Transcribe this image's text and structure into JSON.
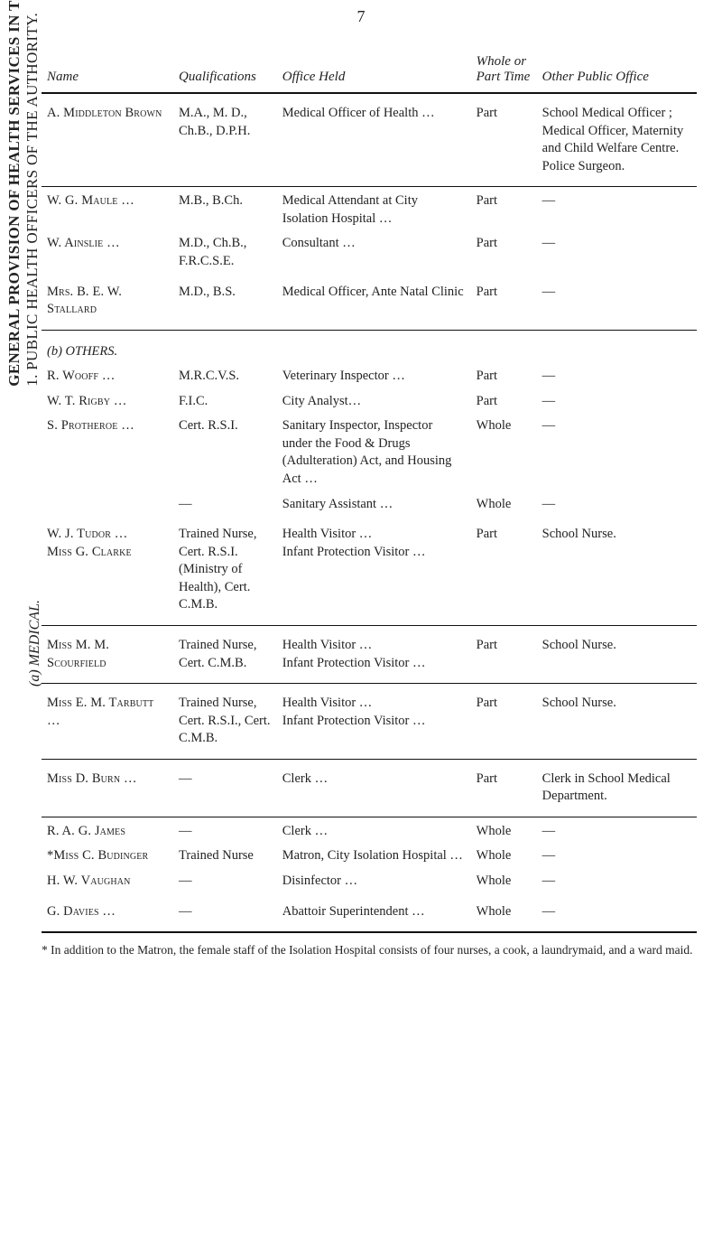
{
  "page_number": "7",
  "running_head": {
    "bold": "GENERAL PROVISION OF HEALTH SERVICES IN THE AREA.",
    "line2": "1.  PUBLIC HEALTH OFFICERS OF THE AUTHORITY."
  },
  "side_label": "(a) MEDICAL.",
  "columns": {
    "name": "Name",
    "qual": "Qualifications",
    "office": "Office Held",
    "time": "Whole or Part Time",
    "other": "Other Public Office"
  },
  "rows": [
    {
      "name": "A. Middleton Brown",
      "qual": "M.A., M. D., Ch.B., D.P.H.",
      "office": "Medical Officer of Health …",
      "time": "Part",
      "other": "School Medical Officer ; Medical Officer, Maternity and Child Welfare Centre. Police Surgeon."
    },
    {
      "name": "W. G. Maule  …",
      "qual": "M.B., B.Ch.",
      "office": "Medical Attendant at City Isolation Hospital  …",
      "time": "Part",
      "other": "—"
    },
    {
      "name": "W. Ainslie  …",
      "qual": "M.D., Ch.B., F.R.C.S.E.",
      "office": "Consultant  …",
      "time": "Part",
      "other": "—"
    },
    {
      "name": "Mrs. B. E. W. Stallard",
      "qual": "M.D., B.S.",
      "office": "Medical Officer, Ante Natal Clinic",
      "time": "Part",
      "other": "—"
    }
  ],
  "section_b": "(b) OTHERS.",
  "rows_b": [
    {
      "name": "R. Wooff  …",
      "qual": "M.R.C.V.S.",
      "office": "Veterinary Inspector  …",
      "time": "Part",
      "other": "—"
    },
    {
      "name": "W. T. Rigby  …",
      "qual": "F.I.C.",
      "office": "City Analyst…",
      "time": "Part",
      "other": "—"
    },
    {
      "name": "S. Protheroe …",
      "qual": "Cert. R.S.I.",
      "office": "Sanitary Inspector, Inspector under the Food & Drugs (Adulteration) Act, and Housing Act …",
      "time": "Whole",
      "other": "—"
    },
    {
      "name": "",
      "qual": "—",
      "office": "Sanitary Assistant …",
      "time": "Whole",
      "other": "—"
    },
    {
      "name": "W. J. Tudor  …",
      "qual": "Trained Nurse, Cert. R.S.I. (Ministry of Health), Cert. C.M.B.",
      "office": "Health Visitor  …\nInfant Protection Visitor …",
      "time": "Part",
      "other": "School Nurse."
    },
    {
      "name": "Miss G. Clarke",
      "qual": "",
      "office": "",
      "time": "",
      "other": ""
    },
    {
      "name": "Miss M. M. Scourfield",
      "qual": "Trained Nurse, Cert. C.M.B.",
      "office": "Health Visitor  …\nInfant Protection Visitor …",
      "time": "Part",
      "other": "School Nurse."
    },
    {
      "name": "Miss E. M. Tarbutt …",
      "qual": "Trained Nurse, Cert. R.S.I., Cert. C.M.B.",
      "office": "Health Visitor  …\nInfant Protection Visitor …",
      "time": "Part",
      "other": "School Nurse."
    },
    {
      "name": "Miss D. Burn …",
      "qual": "—",
      "office": "Clerk  …",
      "time": "Part",
      "other": "Clerk in School Medical Department."
    },
    {
      "name": "R. A. G. James",
      "qual": "—",
      "office": "Clerk  …",
      "time": "Whole",
      "other": "—"
    },
    {
      "name": "*Miss C. Budinger",
      "qual": "Trained Nurse",
      "office": "Matron, City Isolation Hospital …",
      "time": "Whole",
      "other": "—"
    },
    {
      "name": "H. W. Vaughan",
      "qual": "—",
      "office": "Disinfector  …",
      "time": "Whole",
      "other": "—"
    },
    {
      "name": "G. Davies  …",
      "qual": "—",
      "office": "Abattoir Superintendent  …",
      "time": "Whole",
      "other": "—"
    }
  ],
  "footnote": "* In addition to the Matron, the female staff of the Isolation Hospital consists of four nurses, a cook, a laundrymaid, and a ward maid."
}
